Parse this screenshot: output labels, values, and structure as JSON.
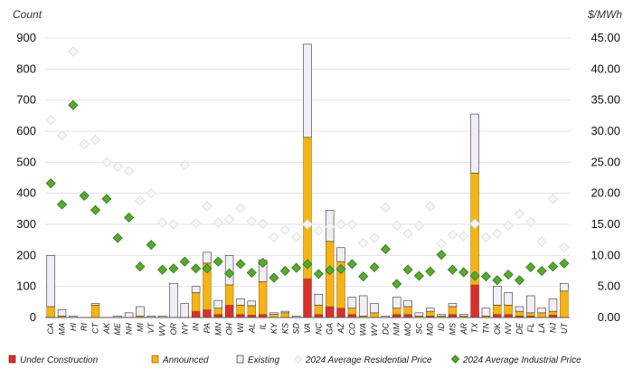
{
  "chart_data": {
    "type": "bar",
    "stacked": true,
    "left_axis_label": "Count",
    "right_axis_label": "$/MWh",
    "ylim_left": [
      0,
      900
    ],
    "ylim_right": [
      0,
      45
    ],
    "yticks_left": [
      "0",
      "100",
      "200",
      "300",
      "400",
      "500",
      "600",
      "700",
      "800",
      "900"
    ],
    "yticks_right": [
      "0.00",
      "5.00",
      "10.00",
      "15.00",
      "20.00",
      "25.00",
      "30.00",
      "35.00",
      "40.00",
      "45.00"
    ],
    "categories": [
      "CA",
      "MA",
      "HI",
      "RI",
      "CT",
      "AK",
      "ME",
      "NH",
      "MI",
      "VT",
      "WV",
      "OR",
      "NY",
      "IN",
      "PA",
      "MN",
      "OH",
      "WI",
      "AL",
      "IL",
      "KY",
      "KS",
      "SD",
      "VA",
      "NC",
      "GA",
      "AZ",
      "CO",
      "WA",
      "WY",
      "DC",
      "NM",
      "MO",
      "SC",
      "MD",
      "ID",
      "MS",
      "AR",
      "TX",
      "TN",
      "OK",
      "NV",
      "DE",
      "FL",
      "LA",
      "NJ",
      "UT"
    ],
    "colors": {
      "under_construction": "#d9302c",
      "announced": "#f5b316",
      "existing": "#f1eef6",
      "existing_edge": "#333333",
      "residential": "#e4e4e4",
      "industrial": "#5aa832"
    },
    "series": [
      {
        "name": "Under Construction",
        "values": [
          0,
          0,
          0,
          0,
          0,
          0,
          0,
          0,
          0,
          0,
          0,
          0,
          0,
          20,
          25,
          10,
          40,
          10,
          8,
          10,
          0,
          0,
          0,
          125,
          10,
          35,
          30,
          10,
          0,
          0,
          0,
          10,
          10,
          0,
          5,
          0,
          10,
          0,
          105,
          0,
          10,
          10,
          5,
          5,
          0,
          8,
          0
        ]
      },
      {
        "name": "Announced",
        "values": [
          35,
          5,
          0,
          0,
          40,
          0,
          0,
          0,
          5,
          0,
          0,
          0,
          0,
          60,
          150,
          20,
          65,
          30,
          30,
          105,
          10,
          15,
          0,
          455,
          30,
          210,
          150,
          20,
          5,
          15,
          0,
          20,
          25,
          5,
          15,
          5,
          25,
          5,
          360,
          5,
          30,
          30,
          15,
          10,
          15,
          12,
          85
        ]
      },
      {
        "name": "Existing",
        "values": [
          165,
          20,
          5,
          0,
          5,
          0,
          5,
          15,
          30,
          5,
          5,
          110,
          45,
          20,
          35,
          25,
          95,
          20,
          15,
          70,
          5,
          5,
          5,
          300,
          35,
          100,
          45,
          35,
          65,
          30,
          5,
          35,
          20,
          10,
          10,
          5,
          10,
          5,
          190,
          25,
          60,
          40,
          15,
          55,
          15,
          40,
          25
        ]
      },
      {
        "name": "2024 Average Residential Price",
        "values": [
          31.8,
          29.3,
          42.8,
          27.9,
          28.6,
          25.0,
          24.3,
          23.6,
          18.8,
          20.0,
          15.3,
          15.0,
          24.5,
          15.2,
          17.9,
          15.3,
          15.8,
          17.6,
          15.5,
          15.1,
          12.9,
          14.1,
          13.0,
          15.0,
          14.0,
          14.6,
          15.0,
          15.0,
          12.0,
          12.8,
          17.7,
          14.8,
          13.5,
          14.8,
          17.9,
          11.9,
          13.3,
          13.1,
          15.1,
          12.9,
          13.5,
          14.8,
          16.7,
          15.4,
          12.2,
          19.1,
          11.3
        ]
      },
      {
        "name": "2024 Average Industrial Price",
        "values": [
          21.6,
          18.2,
          34.2,
          19.6,
          17.3,
          19.1,
          12.8,
          16.1,
          8.2,
          11.7,
          7.7,
          7.9,
          9.0,
          7.9,
          7.9,
          9.0,
          7.1,
          8.6,
          7.2,
          8.8,
          6.4,
          7.5,
          8.0,
          8.6,
          7.0,
          7.6,
          7.8,
          8.6,
          6.6,
          8.1,
          11.0,
          5.4,
          7.7,
          6.7,
          7.4,
          10.1,
          7.7,
          7.3,
          6.7,
          6.6,
          6.0,
          6.9,
          6.0,
          8.1,
          7.5,
          8.2,
          8.7
        ]
      }
    ],
    "legend": [
      "Under Construction",
      "Announced",
      "Existing",
      "2024 Average Residential Price",
      "2024 Average Industrial Price"
    ]
  }
}
